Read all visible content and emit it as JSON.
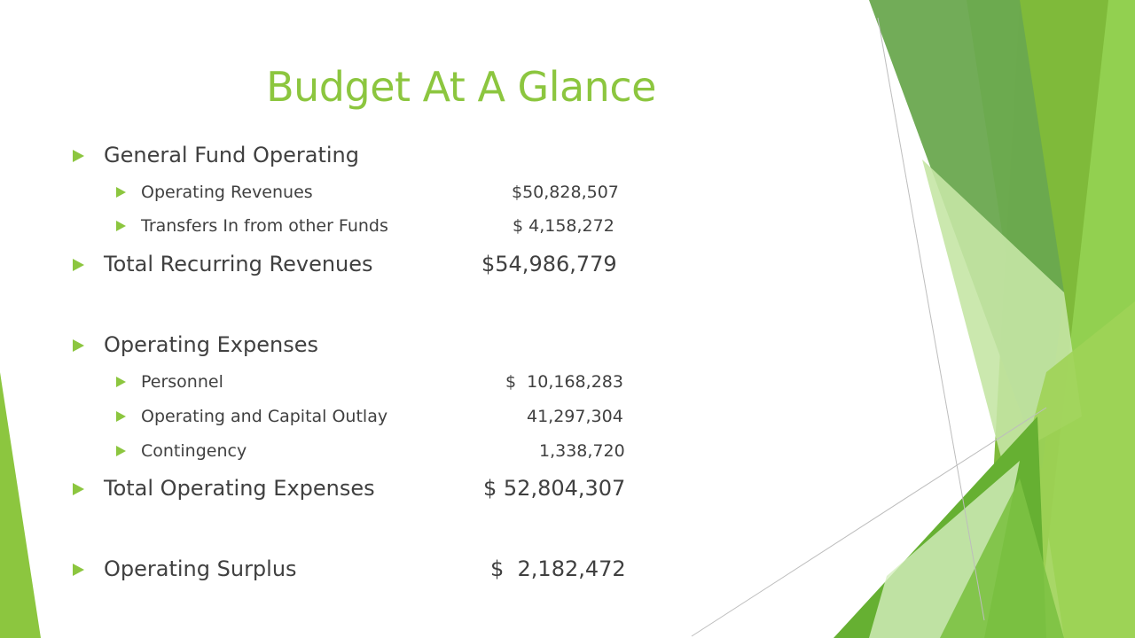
{
  "slide": {
    "title": "Budget At A Glance",
    "items": [
      {
        "label": "General Fund Operating",
        "value": ""
      },
      {
        "label": "Operating Revenues",
        "value": "$50,828,507"
      },
      {
        "label": "Transfers In from other Funds",
        "value": "$ 4,158,272"
      },
      {
        "label": "Total Recurring Revenues",
        "value": "$54,986,779"
      },
      {
        "label": "Operating Expenses",
        "value": ""
      },
      {
        "label": "Personnel",
        "value": "$  10,168,283"
      },
      {
        "label": "Operating and Capital Outlay",
        "value": "41,297,304"
      },
      {
        "label": "Contingency",
        "value": "1,338,720"
      },
      {
        "label": "Total Operating Expenses",
        "value": "$ 52,804,307"
      },
      {
        "label": "Operating Surplus",
        "value": "$  2,182,472"
      }
    ]
  },
  "colors": {
    "accent": "#8cc63f",
    "text": "#404040"
  }
}
